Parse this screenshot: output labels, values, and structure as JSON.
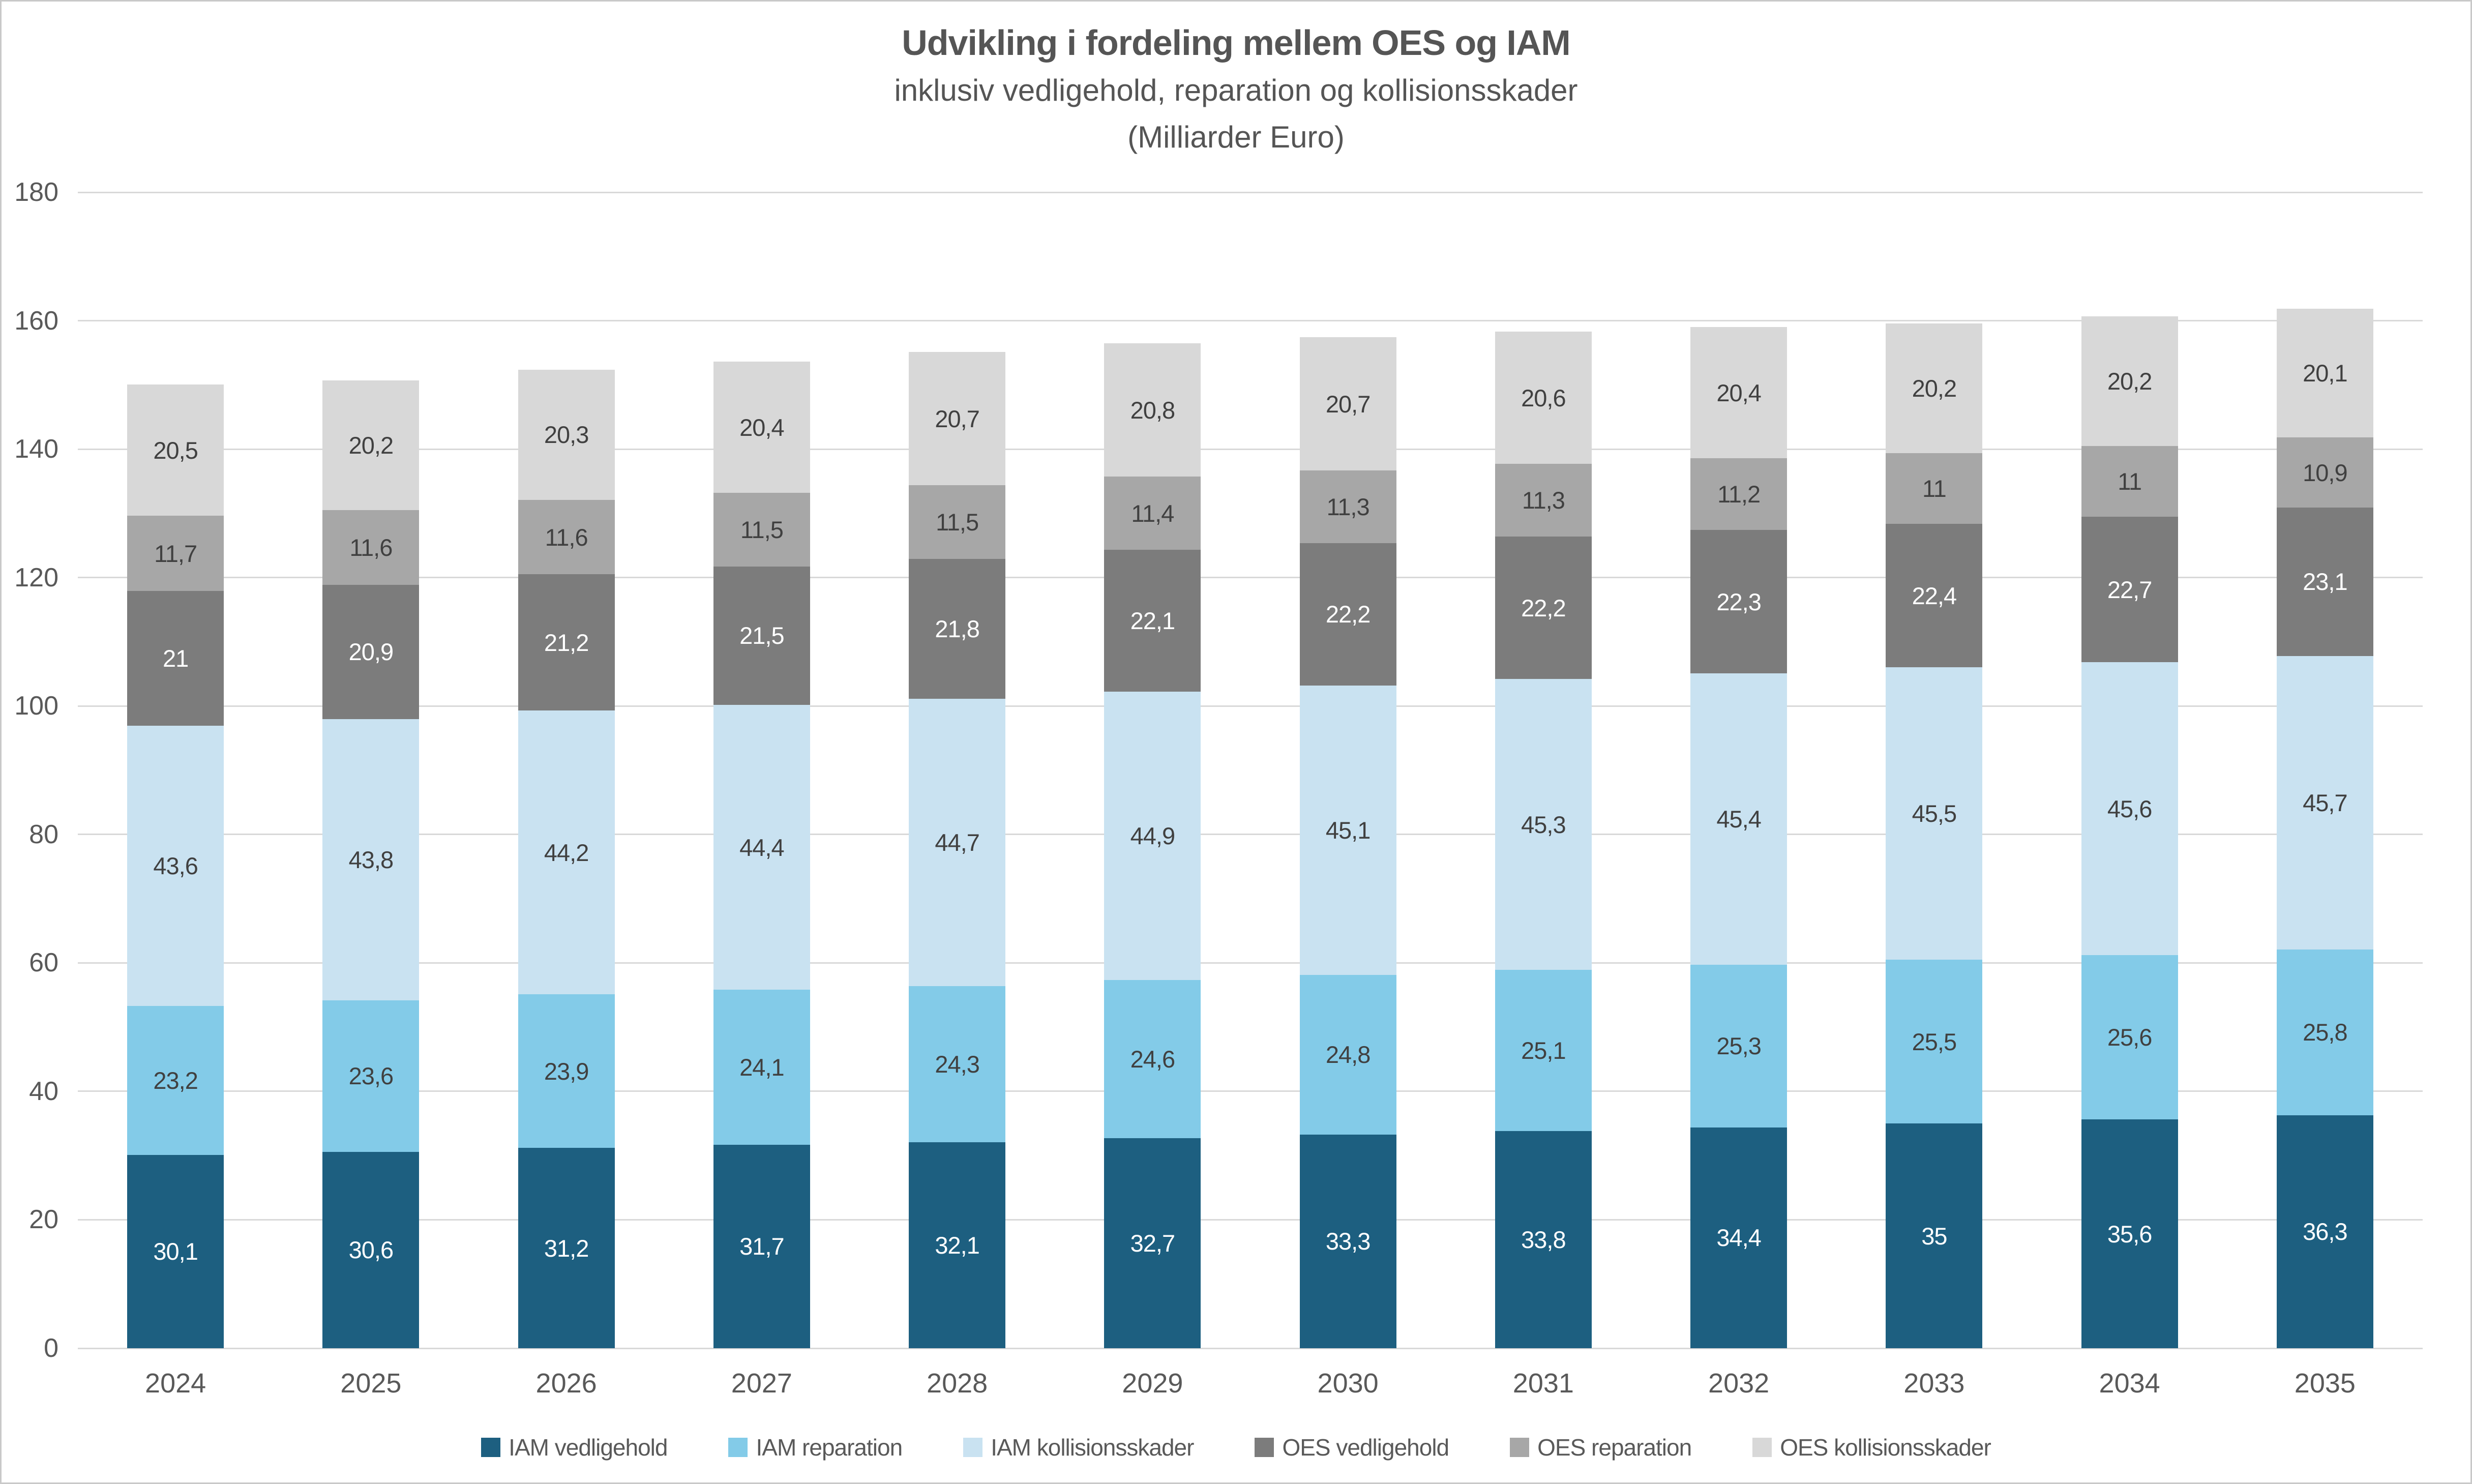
{
  "chart_data": {
    "type": "bar",
    "stacked": true,
    "title": "Udvikling i fordeling mellem OES og IAM",
    "subtitle": "inklusiv vedligehold, reparation og kollisionsskader",
    "units_line": "(Milliarder Euro)",
    "categories": [
      "2024",
      "2025",
      "2026",
      "2027",
      "2028",
      "2029",
      "2030",
      "2031",
      "2032",
      "2033",
      "2034",
      "2035"
    ],
    "series": [
      {
        "name": "IAM vedligehold",
        "color": "#1d5f80",
        "label_color": "#ffffff",
        "values": [
          30.1,
          30.6,
          31.2,
          31.7,
          32.1,
          32.7,
          33.3,
          33.8,
          34.4,
          35,
          35.6,
          36.3
        ],
        "labels": [
          "30,1",
          "30,6",
          "31,2",
          "31,7",
          "32,1",
          "32,7",
          "33,3",
          "33,8",
          "34,4",
          "35",
          "35,6",
          "36,3"
        ]
      },
      {
        "name": "IAM reparation",
        "color": "#83cbe8",
        "label_color": "#404040",
        "values": [
          23.2,
          23.6,
          23.9,
          24.1,
          24.3,
          24.6,
          24.8,
          25.1,
          25.3,
          25.5,
          25.6,
          25.8
        ],
        "labels": [
          "23,2",
          "23,6",
          "23,9",
          "24,1",
          "24,3",
          "24,6",
          "24,8",
          "25,1",
          "25,3",
          "25,5",
          "25,6",
          "25,8"
        ]
      },
      {
        "name": "IAM kollisionsskader",
        "color": "#c9e2f1",
        "label_color": "#404040",
        "values": [
          43.6,
          43.8,
          44.2,
          44.4,
          44.7,
          44.9,
          45.1,
          45.3,
          45.4,
          45.5,
          45.6,
          45.7
        ],
        "labels": [
          "43,6",
          "43,8",
          "44,2",
          "44,4",
          "44,7",
          "44,9",
          "45,1",
          "45,3",
          "45,4",
          "45,5",
          "45,6",
          "45,7"
        ]
      },
      {
        "name": "OES vedligehold",
        "color": "#7c7c7c",
        "label_color": "#ffffff",
        "values": [
          21,
          20.9,
          21.2,
          21.5,
          21.8,
          22.1,
          22.2,
          22.2,
          22.3,
          22.4,
          22.7,
          23.1
        ],
        "labels": [
          "21",
          "20,9",
          "21,2",
          "21,5",
          "21,8",
          "22,1",
          "22,2",
          "22,2",
          "22,3",
          "22,4",
          "22,7",
          "23,1"
        ]
      },
      {
        "name": "OES reparation",
        "color": "#a7a7a7",
        "label_color": "#404040",
        "values": [
          11.7,
          11.6,
          11.6,
          11.5,
          11.5,
          11.4,
          11.3,
          11.3,
          11.2,
          11,
          11,
          10.9
        ],
        "labels": [
          "11,7",
          "11,6",
          "11,6",
          "11,5",
          "11,5",
          "11,4",
          "11,3",
          "11,3",
          "11,2",
          "11",
          "11",
          "10,9"
        ]
      },
      {
        "name": "OES kollisionsskader",
        "color": "#d8d8d8",
        "label_color": "#404040",
        "values": [
          20.5,
          20.2,
          20.3,
          20.4,
          20.7,
          20.8,
          20.7,
          20.6,
          20.4,
          20.2,
          20.2,
          20.1
        ],
        "labels": [
          "20,5",
          "20,2",
          "20,3",
          "20,4",
          "20,7",
          "20,8",
          "20,7",
          "20,6",
          "20,4",
          "20,2",
          "20,2",
          "20,1"
        ]
      }
    ],
    "ylim": [
      0,
      180
    ],
    "yticks": [
      0,
      20,
      40,
      60,
      80,
      100,
      120,
      140,
      160,
      180
    ],
    "grid": true,
    "legend_position": "bottom",
    "grid_color": "#d9d9d9",
    "axis_text_color": "#595959",
    "title_color": "#555555"
  }
}
